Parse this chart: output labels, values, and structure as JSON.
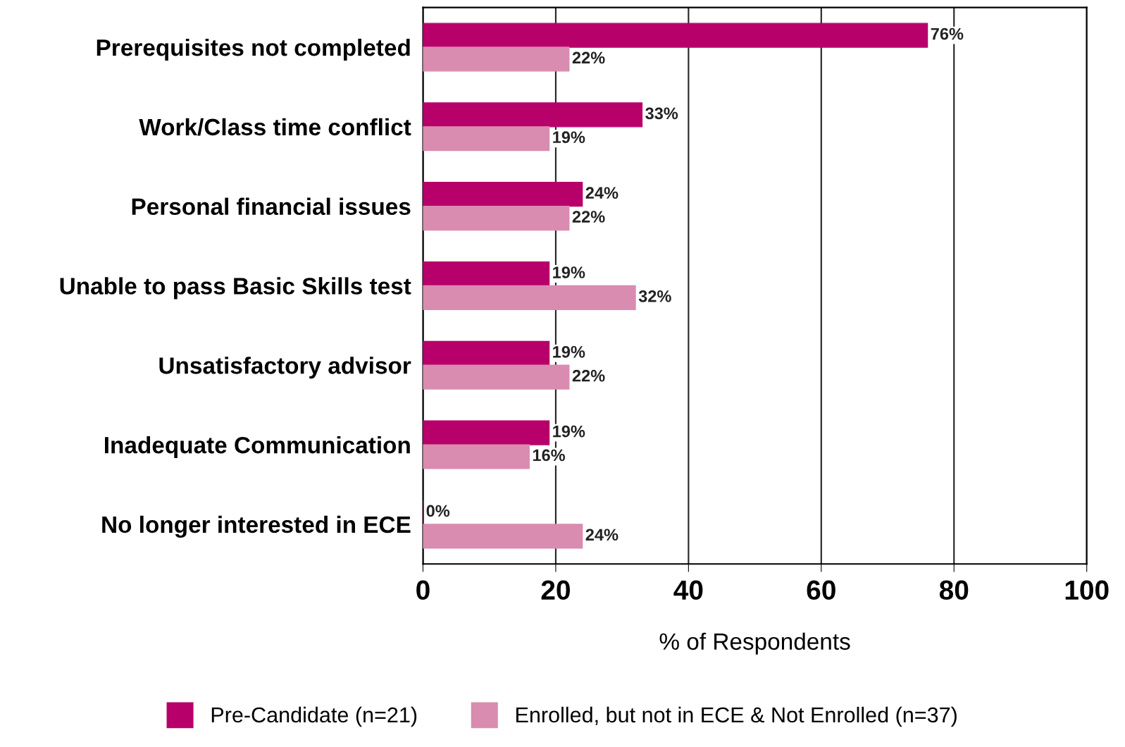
{
  "chart_data": {
    "type": "bar",
    "orientation": "horizontal",
    "xlabel": "% of Respondents",
    "categories": [
      "Prerequisites not completed",
      "Work/Class time conflict",
      "Personal financial issues",
      "Unable to pass Basic Skills test",
      "Unsatisfactory advisor",
      "Inadequate Communication",
      "No longer interested in ECE"
    ],
    "series": [
      {
        "name": "Pre-Candidate (n=21)",
        "color": "#b8006b",
        "values": [
          76,
          33,
          24,
          19,
          19,
          19,
          0
        ],
        "value_labels": [
          "76%",
          "33%",
          "24%",
          "19%",
          "19%",
          "19%",
          "0%"
        ]
      },
      {
        "name": "Enrolled, but not in ECE & Not Enrolled (n=37)",
        "color": "#d98bb0",
        "values": [
          22,
          19,
          22,
          32,
          22,
          16,
          24
        ],
        "value_labels": [
          "22%",
          "19%",
          "22%",
          "32%",
          "22%",
          "16%",
          "24%"
        ]
      }
    ],
    "xlim": [
      0,
      100
    ],
    "xticks": [
      0,
      20,
      40,
      60,
      80,
      100
    ],
    "grid": "x",
    "legend": "bottom"
  }
}
